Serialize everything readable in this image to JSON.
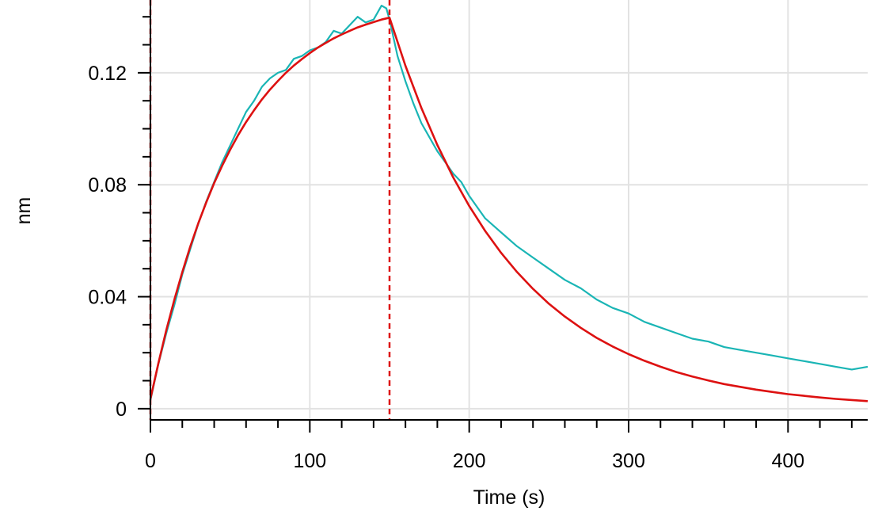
{
  "chart_data": {
    "type": "line",
    "title": "",
    "xlabel": "Time (s)",
    "ylabel": "nm",
    "xlim": [
      0,
      450
    ],
    "ylim": [
      -0.004,
      0.146
    ],
    "grid": true,
    "x_ticks": [
      0,
      100,
      200,
      300,
      400
    ],
    "x_tick_labels": [
      "0",
      "100",
      "200",
      "300",
      "400"
    ],
    "y_ticks": [
      0,
      0.04,
      0.08,
      0.12
    ],
    "y_tick_labels": [
      "0",
      "0.04",
      "0.08",
      "0.12"
    ],
    "x_minor_step": 20,
    "y_minor_step": 0.01,
    "vertical_markers": [
      0,
      150
    ],
    "series": [
      {
        "color": "#1ab5b5",
        "role": "measured",
        "x": [
          0,
          5,
          10,
          15,
          20,
          25,
          30,
          35,
          40,
          45,
          50,
          55,
          60,
          65,
          70,
          75,
          80,
          85,
          90,
          95,
          100,
          105,
          110,
          115,
          120,
          125,
          130,
          135,
          140,
          145,
          148,
          150,
          155,
          160,
          165,
          170,
          175,
          180,
          185,
          190,
          195,
          200,
          210,
          220,
          230,
          240,
          250,
          260,
          270,
          280,
          290,
          300,
          310,
          320,
          330,
          340,
          350,
          360,
          370,
          380,
          390,
          400,
          410,
          420,
          430,
          440,
          450
        ],
        "y": [
          0.003,
          0.016,
          0.027,
          0.037,
          0.048,
          0.057,
          0.066,
          0.074,
          0.081,
          0.088,
          0.094,
          0.1,
          0.106,
          0.11,
          0.115,
          0.118,
          0.12,
          0.121,
          0.125,
          0.126,
          0.128,
          0.129,
          0.131,
          0.135,
          0.134,
          0.137,
          0.14,
          0.138,
          0.139,
          0.144,
          0.143,
          0.139,
          0.126,
          0.117,
          0.109,
          0.102,
          0.097,
          0.092,
          0.088,
          0.084,
          0.081,
          0.076,
          0.068,
          0.063,
          0.058,
          0.054,
          0.05,
          0.046,
          0.043,
          0.039,
          0.036,
          0.034,
          0.031,
          0.029,
          0.027,
          0.025,
          0.024,
          0.022,
          0.021,
          0.02,
          0.019,
          0.018,
          0.017,
          0.016,
          0.015,
          0.014,
          0.015
        ]
      },
      {
        "color": "#dd1111",
        "role": "fit",
        "x": [
          0,
          5,
          10,
          15,
          20,
          25,
          30,
          35,
          40,
          45,
          50,
          55,
          60,
          65,
          70,
          75,
          80,
          85,
          90,
          95,
          100,
          105,
          110,
          115,
          120,
          125,
          130,
          135,
          140,
          145,
          150,
          160,
          170,
          180,
          190,
          200,
          210,
          220,
          230,
          240,
          250,
          260,
          270,
          280,
          290,
          300,
          310,
          320,
          330,
          340,
          350,
          360,
          370,
          380,
          390,
          400,
          410,
          420,
          430,
          440,
          450
        ],
        "y": [
          0.0035,
          0.0163,
          0.0281,
          0.0389,
          0.0488,
          0.0579,
          0.0662,
          0.0737,
          0.0806,
          0.0868,
          0.0925,
          0.0977,
          0.1024,
          0.1066,
          0.1105,
          0.114,
          0.1171,
          0.12,
          0.1226,
          0.1249,
          0.127,
          0.129,
          0.1307,
          0.1323,
          0.1337,
          0.135,
          0.1362,
          0.1372,
          0.1381,
          0.139,
          0.1397,
          0.1225,
          0.1074,
          0.0942,
          0.0826,
          0.0724,
          0.0635,
          0.0557,
          0.0488,
          0.0428,
          0.0375,
          0.0329,
          0.0289,
          0.0253,
          0.0222,
          0.0195,
          0.0171,
          0.015,
          0.0131,
          0.0115,
          0.0101,
          0.0088,
          0.0078,
          0.0068,
          0.006,
          0.0052,
          0.0046,
          0.004,
          0.0035,
          0.0031,
          0.0027
        ]
      }
    ]
  }
}
